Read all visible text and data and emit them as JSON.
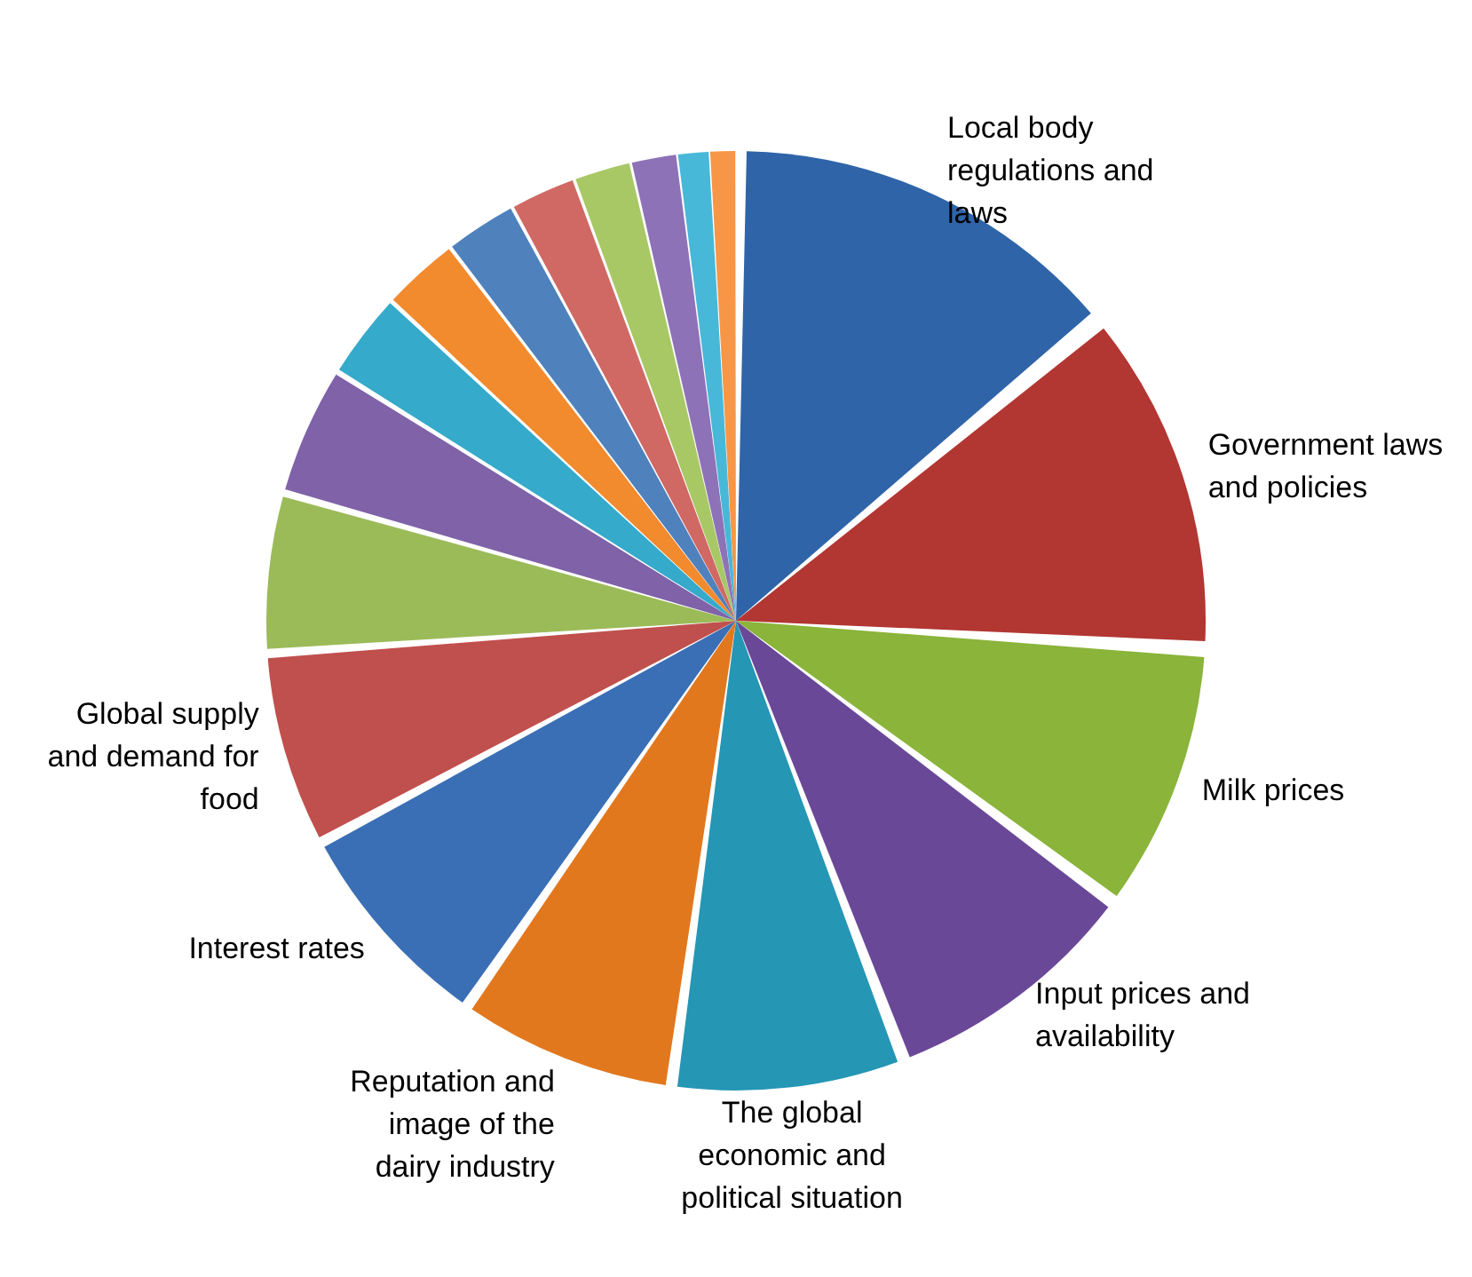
{
  "chart_data": {
    "type": "pie",
    "legend": false,
    "categories": [
      "Local body regulations and laws",
      "Government laws and policies",
      "Milk prices",
      "Input prices and availability",
      "The global economic and political situation",
      "Reputation and image of the dairy industry",
      "Interest rates",
      "Global supply and demand for food",
      null,
      null,
      null,
      null,
      null,
      null,
      null,
      null,
      null,
      null
    ],
    "values": [
      14,
      12,
      9.2,
      9,
      8,
      7.5,
      7.5,
      6.7,
      5.5,
      4.5,
      3,
      2.7,
      2.5,
      2.3,
      2,
      1.6,
      1.1,
      0.9
    ],
    "colors": [
      "#2f64a8",
      "#b23632",
      "#8ab43a",
      "#6a4898",
      "#2596b4",
      "#e2781e",
      "#3a6fb5",
      "#c0504d",
      "#9bbb59",
      "#7f62a8",
      "#35aacb",
      "#f28a2e",
      "#4f81bd",
      "#d06864",
      "#a8c866",
      "#8e72b8",
      "#48b8d8",
      "#f79646"
    ]
  }
}
